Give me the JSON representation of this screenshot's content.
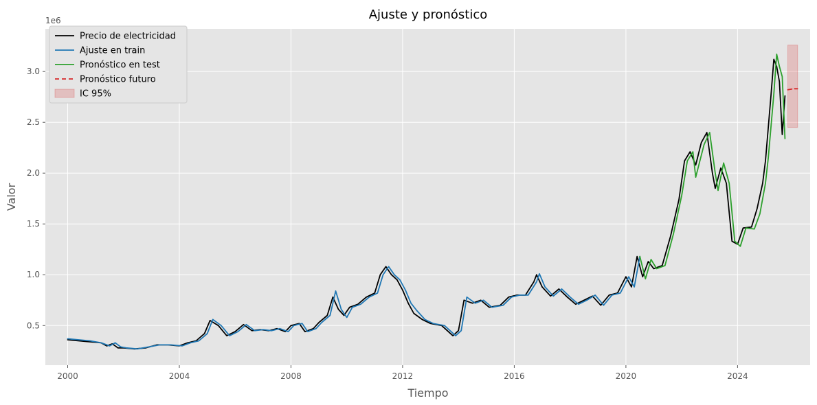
{
  "chart_data": {
    "type": "line",
    "title": "Ajuste y pronóstico",
    "xlabel": "Tiempo",
    "ylabel": "Valor",
    "y_offset_label": "1e6",
    "xlim": [
      1999.2,
      2026.6
    ],
    "ylim": [
      0.11,
      3.42
    ],
    "x_ticks": [
      2000,
      2004,
      2008,
      2012,
      2016,
      2020,
      2024
    ],
    "y_ticks": [
      0.5,
      1.0,
      1.5,
      2.0,
      2.5,
      3.0
    ],
    "y_tick_labels": [
      "0.5",
      "1.0",
      "1.5",
      "2.0",
      "2.5",
      "3.0"
    ],
    "grid": true,
    "legend_position": "top-left",
    "colors": {
      "price": "#000000",
      "train": "#1f77b4",
      "test": "#2ca02c",
      "forecast": "#d62728",
      "ci": "#d62728",
      "background": "#e5e5e5",
      "grid": "#ffffff"
    },
    "series": [
      {
        "name": "Precio de electricidad",
        "style": "solid",
        "points": [
          [
            2000.0,
            0.36
          ],
          [
            2000.4,
            0.35
          ],
          [
            2000.8,
            0.34
          ],
          [
            2001.2,
            0.33
          ],
          [
            2001.4,
            0.3
          ],
          [
            2001.6,
            0.32
          ],
          [
            2001.8,
            0.28
          ],
          [
            2002.0,
            0.28
          ],
          [
            2002.4,
            0.27
          ],
          [
            2002.8,
            0.28
          ],
          [
            2003.2,
            0.31
          ],
          [
            2003.6,
            0.31
          ],
          [
            2004.0,
            0.3
          ],
          [
            2004.3,
            0.33
          ],
          [
            2004.6,
            0.35
          ],
          [
            2004.9,
            0.42
          ],
          [
            2005.1,
            0.55
          ],
          [
            2005.4,
            0.5
          ],
          [
            2005.7,
            0.4
          ],
          [
            2006.0,
            0.44
          ],
          [
            2006.3,
            0.51
          ],
          [
            2006.6,
            0.45
          ],
          [
            2006.9,
            0.46
          ],
          [
            2007.2,
            0.45
          ],
          [
            2007.5,
            0.47
          ],
          [
            2007.8,
            0.44
          ],
          [
            2008.0,
            0.5
          ],
          [
            2008.3,
            0.52
          ],
          [
            2008.5,
            0.44
          ],
          [
            2008.8,
            0.47
          ],
          [
            2009.0,
            0.53
          ],
          [
            2009.3,
            0.6
          ],
          [
            2009.5,
            0.78
          ],
          [
            2009.7,
            0.66
          ],
          [
            2009.9,
            0.6
          ],
          [
            2010.1,
            0.68
          ],
          [
            2010.4,
            0.71
          ],
          [
            2010.7,
            0.78
          ],
          [
            2011.0,
            0.82
          ],
          [
            2011.2,
            1.0
          ],
          [
            2011.4,
            1.08
          ],
          [
            2011.6,
            1.0
          ],
          [
            2011.8,
            0.95
          ],
          [
            2012.0,
            0.85
          ],
          [
            2012.2,
            0.72
          ],
          [
            2012.4,
            0.62
          ],
          [
            2012.7,
            0.56
          ],
          [
            2013.0,
            0.52
          ],
          [
            2013.4,
            0.5
          ],
          [
            2013.8,
            0.4
          ],
          [
            2014.0,
            0.45
          ],
          [
            2014.2,
            0.75
          ],
          [
            2014.5,
            0.72
          ],
          [
            2014.8,
            0.75
          ],
          [
            2015.1,
            0.68
          ],
          [
            2015.5,
            0.7
          ],
          [
            2015.8,
            0.78
          ],
          [
            2016.1,
            0.8
          ],
          [
            2016.4,
            0.8
          ],
          [
            2016.7,
            0.93
          ],
          [
            2016.8,
            1.0
          ],
          [
            2017.0,
            0.88
          ],
          [
            2017.3,
            0.79
          ],
          [
            2017.6,
            0.86
          ],
          [
            2017.9,
            0.78
          ],
          [
            2018.2,
            0.71
          ],
          [
            2018.5,
            0.75
          ],
          [
            2018.8,
            0.79
          ],
          [
            2019.1,
            0.7
          ],
          [
            2019.4,
            0.8
          ],
          [
            2019.7,
            0.82
          ],
          [
            2020.0,
            0.98
          ],
          [
            2020.2,
            0.88
          ],
          [
            2020.4,
            1.18
          ],
          [
            2020.6,
            0.98
          ],
          [
            2020.8,
            1.13
          ],
          [
            2021.0,
            1.06
          ],
          [
            2021.3,
            1.09
          ],
          [
            2021.6,
            1.38
          ],
          [
            2021.9,
            1.74
          ],
          [
            2022.1,
            2.12
          ],
          [
            2022.3,
            2.21
          ],
          [
            2022.5,
            2.08
          ],
          [
            2022.7,
            2.3
          ],
          [
            2022.9,
            2.4
          ],
          [
            2023.1,
            2.0
          ],
          [
            2023.2,
            1.85
          ],
          [
            2023.4,
            2.05
          ],
          [
            2023.6,
            1.9
          ],
          [
            2023.8,
            1.33
          ],
          [
            2024.0,
            1.3
          ],
          [
            2024.2,
            1.46
          ],
          [
            2024.5,
            1.47
          ],
          [
            2024.7,
            1.65
          ],
          [
            2024.9,
            1.9
          ],
          [
            2025.0,
            2.12
          ],
          [
            2025.2,
            2.77
          ],
          [
            2025.3,
            3.12
          ],
          [
            2025.4,
            3.05
          ],
          [
            2025.5,
            2.9
          ],
          [
            2025.6,
            2.38
          ],
          [
            2025.7,
            2.76
          ]
        ]
      },
      {
        "name": "Ajuste en train",
        "style": "solid",
        "points": [
          [
            2000.0,
            0.37
          ],
          [
            2000.4,
            0.36
          ],
          [
            2000.8,
            0.35
          ],
          [
            2001.2,
            0.33
          ],
          [
            2001.5,
            0.3
          ],
          [
            2001.7,
            0.33
          ],
          [
            2001.9,
            0.29
          ],
          [
            2002.1,
            0.28
          ],
          [
            2002.5,
            0.27
          ],
          [
            2002.9,
            0.29
          ],
          [
            2003.3,
            0.31
          ],
          [
            2003.7,
            0.31
          ],
          [
            2004.1,
            0.3
          ],
          [
            2004.4,
            0.33
          ],
          [
            2004.7,
            0.35
          ],
          [
            2005.0,
            0.42
          ],
          [
            2005.2,
            0.56
          ],
          [
            2005.5,
            0.5
          ],
          [
            2005.8,
            0.4
          ],
          [
            2006.1,
            0.44
          ],
          [
            2006.4,
            0.51
          ],
          [
            2006.7,
            0.45
          ],
          [
            2007.0,
            0.46
          ],
          [
            2007.3,
            0.45
          ],
          [
            2007.6,
            0.47
          ],
          [
            2007.9,
            0.44
          ],
          [
            2008.1,
            0.5
          ],
          [
            2008.4,
            0.52
          ],
          [
            2008.6,
            0.44
          ],
          [
            2008.9,
            0.47
          ],
          [
            2009.1,
            0.53
          ],
          [
            2009.4,
            0.6
          ],
          [
            2009.6,
            0.84
          ],
          [
            2009.8,
            0.66
          ],
          [
            2010.0,
            0.58
          ],
          [
            2010.2,
            0.68
          ],
          [
            2010.5,
            0.71
          ],
          [
            2010.8,
            0.78
          ],
          [
            2011.1,
            0.82
          ],
          [
            2011.3,
            1.0
          ],
          [
            2011.5,
            1.08
          ],
          [
            2011.7,
            1.0
          ],
          [
            2011.9,
            0.95
          ],
          [
            2012.1,
            0.85
          ],
          [
            2012.3,
            0.72
          ],
          [
            2012.5,
            0.65
          ],
          [
            2012.8,
            0.56
          ],
          [
            2013.1,
            0.52
          ],
          [
            2013.5,
            0.5
          ],
          [
            2013.9,
            0.4
          ],
          [
            2014.1,
            0.45
          ],
          [
            2014.3,
            0.78
          ],
          [
            2014.6,
            0.72
          ],
          [
            2014.9,
            0.75
          ],
          [
            2015.2,
            0.68
          ],
          [
            2015.6,
            0.7
          ],
          [
            2015.9,
            0.78
          ],
          [
            2016.2,
            0.8
          ],
          [
            2016.5,
            0.8
          ],
          [
            2016.8,
            0.93
          ],
          [
            2016.9,
            1.01
          ],
          [
            2017.1,
            0.88
          ],
          [
            2017.4,
            0.79
          ],
          [
            2017.7,
            0.86
          ],
          [
            2018.0,
            0.78
          ],
          [
            2018.3,
            0.71
          ],
          [
            2018.6,
            0.75
          ],
          [
            2018.9,
            0.8
          ],
          [
            2019.2,
            0.7
          ],
          [
            2019.5,
            0.8
          ],
          [
            2019.8,
            0.82
          ],
          [
            2020.1,
            0.98
          ],
          [
            2020.3,
            0.88
          ],
          [
            2020.5,
            1.18
          ]
        ]
      },
      {
        "name": "Pronóstico en test",
        "style": "solid",
        "points": [
          [
            2020.5,
            1.18
          ],
          [
            2020.7,
            0.96
          ],
          [
            2020.9,
            1.15
          ],
          [
            2021.1,
            1.06
          ],
          [
            2021.4,
            1.09
          ],
          [
            2021.7,
            1.4
          ],
          [
            2022.0,
            1.78
          ],
          [
            2022.2,
            2.12
          ],
          [
            2022.4,
            2.21
          ],
          [
            2022.5,
            1.96
          ],
          [
            2022.8,
            2.28
          ],
          [
            2023.0,
            2.4
          ],
          [
            2023.2,
            2.0
          ],
          [
            2023.3,
            1.83
          ],
          [
            2023.5,
            2.1
          ],
          [
            2023.7,
            1.9
          ],
          [
            2023.9,
            1.33
          ],
          [
            2024.1,
            1.28
          ],
          [
            2024.3,
            1.46
          ],
          [
            2024.6,
            1.45
          ],
          [
            2024.8,
            1.6
          ],
          [
            2025.0,
            1.9
          ],
          [
            2025.1,
            2.15
          ],
          [
            2025.3,
            2.78
          ],
          [
            2025.4,
            3.17
          ],
          [
            2025.5,
            3.05
          ],
          [
            2025.6,
            2.95
          ],
          [
            2025.7,
            2.34
          ]
        ]
      },
      {
        "name": "Pronóstico futuro",
        "style": "dashed",
        "points": [
          [
            2025.8,
            2.82
          ],
          [
            2026.0,
            2.83
          ],
          [
            2026.15,
            2.83
          ]
        ]
      }
    ],
    "confidence_interval": {
      "name": "IC 95%",
      "x": [
        2025.8,
        2026.15
      ],
      "lower": 2.45,
      "upper": 3.26
    }
  }
}
